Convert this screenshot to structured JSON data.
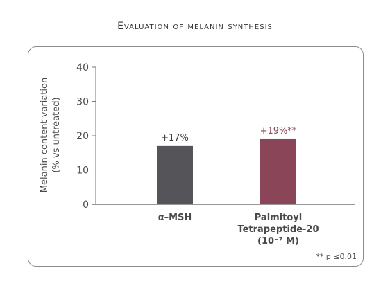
{
  "chart_data": {
    "type": "bar",
    "title": "Evaluation of melanin synthesis",
    "ylabel_line1": "Melanin content variation",
    "ylabel_line2": "(% vs untreated)",
    "ylim": [
      0,
      40
    ],
    "yticks": [
      "0",
      "10",
      "20",
      "30",
      "40"
    ],
    "categories": [
      {
        "lines": [
          "α–MSH"
        ]
      },
      {
        "lines": [
          "Palmitoyl",
          "Tetrapeptide-20",
          "(10⁻⁷ M)"
        ]
      }
    ],
    "values": [
      17,
      19
    ],
    "data_labels": [
      "+17%",
      "+19%**"
    ],
    "colors": [
      "#555559",
      "#8a4558"
    ],
    "label_colors": [
      "#3a3a3a",
      "#8a4558"
    ],
    "footnote": "** p ≤0.01"
  }
}
